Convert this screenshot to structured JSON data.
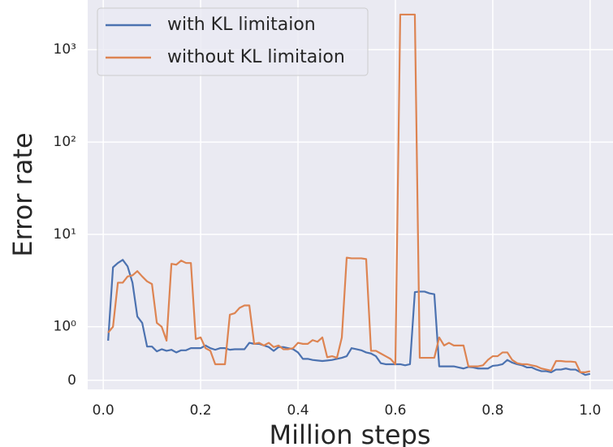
{
  "chart_data": {
    "type": "line",
    "xlabel": "Million steps",
    "ylabel": "Error rate",
    "yscale": "symlog",
    "linthresh": 1,
    "linscale": 0.58,
    "grid": true,
    "legend": "upper left",
    "xlim": [
      -0.032,
      1.047
    ],
    "ylim": [
      -0.17,
      3450
    ],
    "xticks": [
      {
        "value": 0,
        "label": "0.0"
      },
      0.2,
      0.4,
      0.6,
      0.8,
      {
        "value": 1,
        "label": "1.0"
      }
    ],
    "yticks": [
      0,
      {
        "value": 1,
        "label": "10⁰"
      },
      {
        "value": 10,
        "label": "10¹"
      },
      {
        "value": 100,
        "label": "10²"
      },
      {
        "value": 1000,
        "label": "10³"
      }
    ],
    "x": [
      0.01,
      0.02,
      0.03,
      0.04,
      0.05,
      0.06,
      0.07,
      0.08,
      0.09,
      0.1,
      0.11,
      0.12,
      0.13,
      0.14,
      0.15,
      0.16,
      0.17,
      0.18,
      0.19,
      0.2,
      0.21,
      0.22,
      0.23,
      0.24,
      0.25,
      0.26,
      0.27,
      0.28,
      0.29,
      0.3,
      0.31,
      0.32,
      0.33,
      0.34,
      0.35,
      0.36,
      0.37,
      0.38,
      0.39,
      0.4,
      0.41,
      0.42,
      0.43,
      0.44,
      0.45,
      0.46,
      0.47,
      0.48,
      0.49,
      0.5,
      0.51,
      0.52,
      0.53,
      0.54,
      0.55,
      0.56,
      0.57,
      0.58,
      0.59,
      0.6,
      0.61,
      0.62,
      0.63,
      0.64,
      0.65,
      0.66,
      0.67,
      0.68,
      0.69,
      0.7,
      0.71,
      0.72,
      0.73,
      0.74,
      0.75,
      0.76,
      0.77,
      0.78,
      0.79,
      0.8,
      0.81,
      0.82,
      0.83,
      0.84,
      0.85,
      0.86,
      0.87,
      0.88,
      0.89,
      0.9,
      0.91,
      0.92,
      0.93,
      0.94,
      0.95,
      0.96,
      0.97,
      0.98,
      0.99,
      1.0
    ],
    "series": [
      {
        "name": "with KL limitaion",
        "color": "#4c72b0",
        "values": [
          0.74,
          4.4,
          4.9,
          5.3,
          4.5,
          3.0,
          1.29,
          1.1,
          0.63,
          0.63,
          0.54,
          0.58,
          0.55,
          0.57,
          0.52,
          0.56,
          0.56,
          0.6,
          0.6,
          0.6,
          0.65,
          0.6,
          0.57,
          0.6,
          0.6,
          0.57,
          0.58,
          0.58,
          0.58,
          0.7,
          0.68,
          0.68,
          0.65,
          0.62,
          0.55,
          0.62,
          0.62,
          0.6,
          0.58,
          0.52,
          0.4,
          0.4,
          0.38,
          0.37,
          0.36,
          0.37,
          0.38,
          0.4,
          0.42,
          0.45,
          0.6,
          0.58,
          0.56,
          0.52,
          0.5,
          0.45,
          0.32,
          0.3,
          0.3,
          0.3,
          0.3,
          0.28,
          0.3,
          2.37,
          2.4,
          2.4,
          2.3,
          2.25,
          0.26,
          0.26,
          0.26,
          0.26,
          0.24,
          0.22,
          0.25,
          0.24,
          0.22,
          0.22,
          0.22,
          0.27,
          0.28,
          0.3,
          0.38,
          0.33,
          0.3,
          0.28,
          0.24,
          0.24,
          0.2,
          0.17,
          0.17,
          0.15,
          0.2,
          0.2,
          0.22,
          0.2,
          0.2,
          0.15,
          0.1,
          0.12
        ]
      },
      {
        "name": "without KL limitaion",
        "color": "#dd8452",
        "values": [
          0.89,
          1.0,
          3.0,
          3.0,
          3.5,
          3.6,
          4.0,
          3.5,
          3.1,
          2.9,
          1.1,
          1.0,
          0.74,
          4.8,
          4.7,
          5.2,
          4.9,
          4.9,
          0.77,
          0.8,
          0.6,
          0.55,
          0.3,
          0.3,
          0.3,
          1.35,
          1.4,
          1.6,
          1.7,
          1.7,
          0.68,
          0.7,
          0.65,
          0.7,
          0.62,
          0.65,
          0.58,
          0.58,
          0.6,
          0.7,
          0.68,
          0.68,
          0.75,
          0.72,
          0.8,
          0.43,
          0.45,
          0.42,
          0.8,
          5.6,
          5.5,
          5.5,
          5.5,
          5.4,
          0.55,
          0.55,
          0.5,
          0.45,
          0.4,
          0.3,
          2400,
          2400,
          2400,
          2400,
          0.42,
          0.42,
          0.42,
          0.42,
          0.8,
          0.65,
          0.7,
          0.65,
          0.65,
          0.65,
          0.26,
          0.26,
          0.26,
          0.28,
          0.38,
          0.45,
          0.45,
          0.52,
          0.52,
          0.38,
          0.32,
          0.3,
          0.3,
          0.28,
          0.26,
          0.22,
          0.2,
          0.18,
          0.36,
          0.36,
          0.35,
          0.35,
          0.34,
          0.15,
          0.15,
          0.17
        ]
      }
    ]
  }
}
